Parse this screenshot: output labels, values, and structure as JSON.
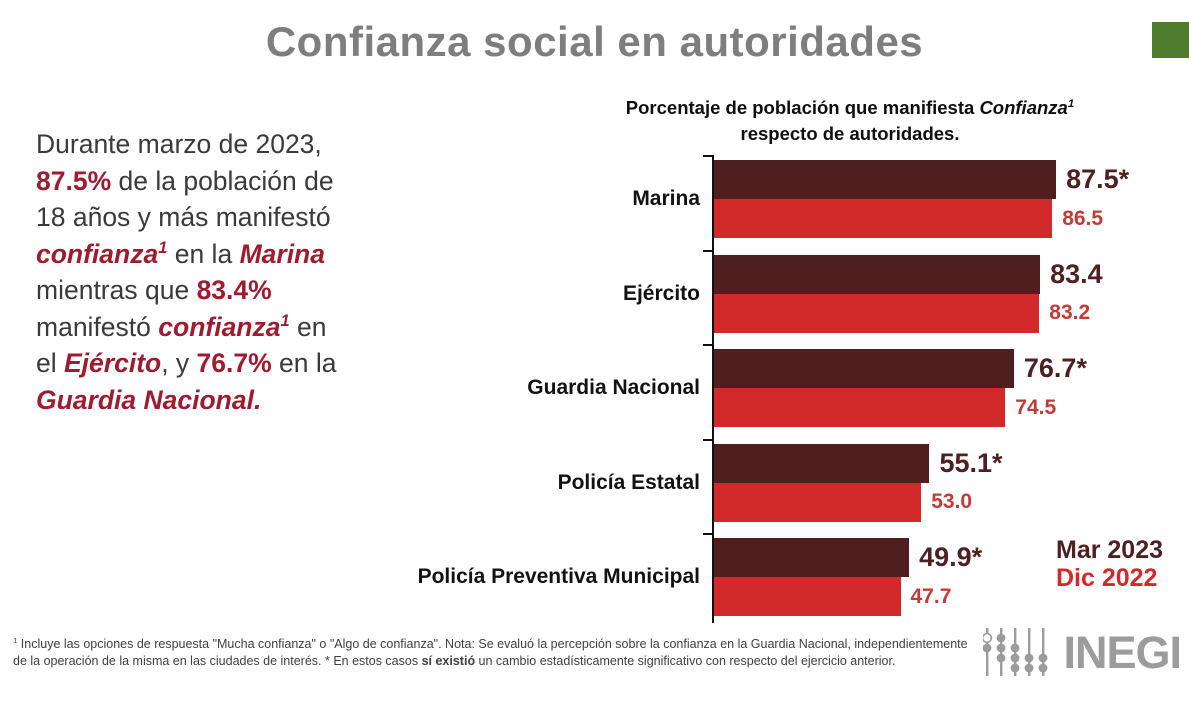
{
  "colors": {
    "wine": "#9e1b30",
    "dark_bar": "#4f1f20",
    "red_bar": "#d2292a",
    "dark_label": "#4f2021",
    "red_label": "#c23b35",
    "title_gray": "#7e7e7e",
    "accent_green": "#4f7d2d",
    "logo_gray": "#9c9c9c"
  },
  "slide": {
    "title": "Confianza social en autoridades"
  },
  "paragraph": {
    "segments": [
      {
        "t": "Durante marzo de 2023,"
      },
      {
        "br": true
      },
      {
        "t": "87.5%",
        "b": true,
        "c": "wine"
      },
      {
        "t": " de la población de"
      },
      {
        "br": true
      },
      {
        "t": "18 años y más manifestó"
      },
      {
        "br": true
      },
      {
        "t": "confianza",
        "b": true,
        "i": true,
        "c": "wine"
      },
      {
        "t": "1",
        "b": true,
        "i": true,
        "c": "wine",
        "sup": true
      },
      {
        "t": " en la "
      },
      {
        "t": "Marina",
        "b": true,
        "i": true,
        "c": "wine"
      },
      {
        "br": true
      },
      {
        "t": "mientras que "
      },
      {
        "t": "83.4%",
        "b": true,
        "c": "wine"
      },
      {
        "br": true
      },
      {
        "t": "manifestó "
      },
      {
        "t": "confianza",
        "b": true,
        "i": true,
        "c": "wine"
      },
      {
        "t": "1",
        "b": true,
        "i": true,
        "c": "wine",
        "sup": true
      },
      {
        "t": " en"
      },
      {
        "br": true
      },
      {
        "t": "el "
      },
      {
        "t": "Ejército",
        "b": true,
        "i": true,
        "c": "wine"
      },
      {
        "t": ", y "
      },
      {
        "t": "76.7%",
        "b": true,
        "c": "wine"
      },
      {
        "t": " en la"
      },
      {
        "br": true
      },
      {
        "t": "Guardia Nacional.",
        "b": true,
        "i": true,
        "c": "wine"
      }
    ]
  },
  "chart_data": {
    "type": "bar",
    "orientation": "horizontal",
    "title": "Porcentaje de población que manifiesta Confianza¹ respecto de autoridades.",
    "subtitle_segments": [
      {
        "t": "Porcentaje de población que manifiesta ",
        "b": true
      },
      {
        "t": "Confianza",
        "b": true,
        "i": true
      },
      {
        "t": "1",
        "b": true,
        "i": true,
        "sup": true
      },
      {
        "br": true
      },
      {
        "t": "respecto de autoridades.",
        "b": true
      }
    ],
    "categories": [
      "Marina",
      "Ejército",
      "Guardia Nacional",
      "Policía Estatal",
      "Policía Preventiva Municipal"
    ],
    "series": [
      {
        "name": "Mar 2023",
        "values": [
          87.5,
          83.4,
          76.7,
          55.1,
          49.9
        ],
        "labels": [
          "87.5*",
          "83.4",
          "76.7*",
          "55.1*",
          "49.9*"
        ],
        "color": "#4f1f20",
        "label_color": "#4f2021"
      },
      {
        "name": "Dic 2022",
        "values": [
          86.5,
          83.2,
          74.5,
          53.0,
          47.7
        ],
        "labels": [
          "86.5",
          "83.2",
          "74.5",
          "53.0",
          "47.7"
        ],
        "color": "#d2292a",
        "label_color": "#c23b35"
      }
    ],
    "xlim": [
      0,
      100
    ],
    "grid": false,
    "legend_position": "bottom-right"
  },
  "legend": {
    "items": [
      {
        "label": "Mar 2023",
        "color": "#4f2021"
      },
      {
        "label": "Dic 2022",
        "color": "#d2292a"
      }
    ]
  },
  "footnote": {
    "segments": [
      {
        "t": "1",
        "sup": true
      },
      {
        "t": " Incluye las opciones de respuesta \"Mucha confianza\" o \"Algo de confianza\". Nota: Se evaluó la percepción sobre la confianza en la Guardia Nacional, independientemente"
      },
      {
        "br": true
      },
      {
        "t": "de la operación de la misma en las ciudades de interés. * En estos casos "
      },
      {
        "t": "sí existió",
        "b": true
      },
      {
        "t": " un cambio estadísticamente significativo con respecto del ejercicio anterior."
      }
    ]
  },
  "logo": {
    "text": "INEGI"
  }
}
